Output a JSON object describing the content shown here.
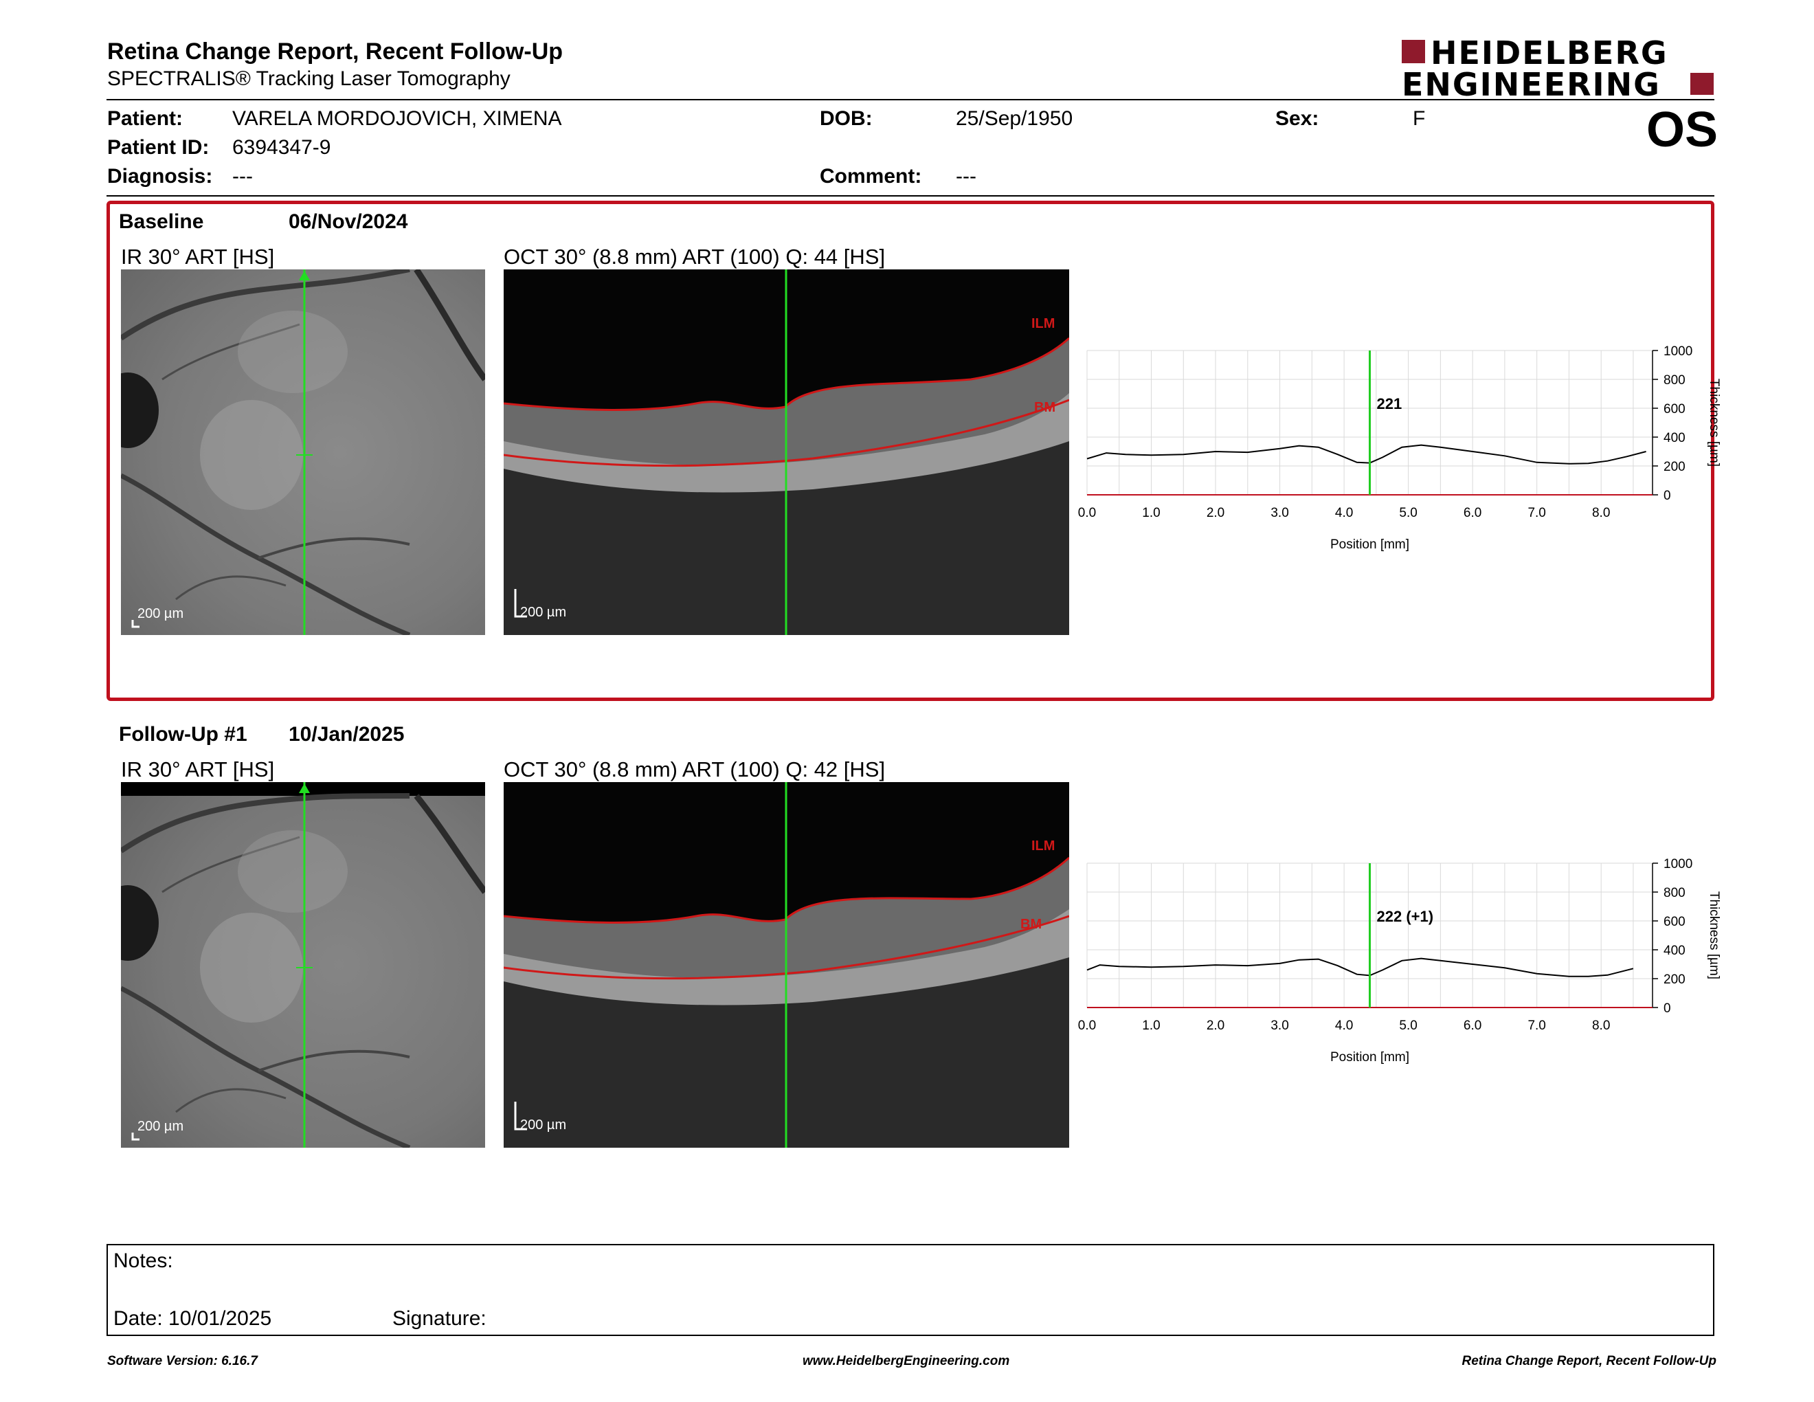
{
  "header": {
    "title": "Retina Change Report, Recent Follow-Up",
    "subtitle": "SPECTRALIS® Tracking Laser Tomography",
    "logo_line1": "HEIDELBERG",
    "logo_line2": "ENGINEERING",
    "eye": "OS",
    "brand_color": "#8f1a2c"
  },
  "patient": {
    "name_label": "Patient:",
    "name": "VARELA MORDOJOVICH, XIMENA",
    "id_label": "Patient ID:",
    "id": "6394347-9",
    "diagnosis_label": "Diagnosis:",
    "diagnosis": "---",
    "dob_label": "DOB:",
    "dob": "25/Sep/1950",
    "comment_label": "Comment:",
    "comment": "---",
    "sex_label": "Sex:",
    "sex": "F"
  },
  "baseline": {
    "label": "Baseline",
    "date": "06/Nov/2024",
    "ir_title": "IR 30° ART [HS]",
    "oct_title": "OCT 30° (8.8 mm) ART (100) Q: 44 [HS]",
    "ir_scale": "200 µm",
    "oct_scale": "200 µm",
    "ilm": "ILM",
    "bm": "BM"
  },
  "followup": {
    "label": "Follow-Up #1",
    "date": "10/Jan/2025",
    "ir_title": "IR 30° ART [HS]",
    "oct_title": "OCT 30° (8.8 mm) ART (100) Q: 42 [HS]",
    "ir_scale": "200 µm",
    "oct_scale": "200 µm",
    "ilm": "ILM",
    "bm": "BM"
  },
  "chart_data": [
    {
      "type": "line",
      "xlabel": "Position [mm]",
      "ylabel": "Thickness [µm]",
      "xlim": [
        0,
        8.8
      ],
      "ylim": [
        0,
        1000
      ],
      "xticks": [
        "0.0",
        "1.0",
        "2.0",
        "3.0",
        "4.0",
        "5.0",
        "6.0",
        "7.0",
        "8.0"
      ],
      "yticks": [
        "0",
        "200",
        "400",
        "600",
        "800",
        "1000"
      ],
      "cursor_x": 4.4,
      "cursor_label": "221",
      "cursor_color": "#22cc22",
      "series": [
        {
          "x": [
            0.0,
            0.3,
            0.6,
            1.0,
            1.5,
            2.0,
            2.5,
            3.0,
            3.3,
            3.6,
            3.9,
            4.2,
            4.4,
            4.6,
            4.9,
            5.2,
            5.5,
            6.0,
            6.5,
            7.0,
            7.5,
            7.8,
            8.1,
            8.4,
            8.7
          ],
          "y": [
            250,
            290,
            280,
            275,
            280,
            300,
            295,
            320,
            340,
            330,
            280,
            225,
            221,
            260,
            330,
            345,
            330,
            300,
            270,
            225,
            215,
            218,
            235,
            265,
            300
          ]
        }
      ]
    },
    {
      "type": "line",
      "xlabel": "Position [mm]",
      "ylabel": "Thickness [µm]",
      "xlim": [
        0,
        8.8
      ],
      "ylim": [
        0,
        1000
      ],
      "xticks": [
        "0.0",
        "1.0",
        "2.0",
        "3.0",
        "4.0",
        "5.0",
        "6.0",
        "7.0",
        "8.0"
      ],
      "yticks": [
        "0",
        "200",
        "400",
        "600",
        "800",
        "1000"
      ],
      "cursor_x": 4.4,
      "cursor_label": "222 (+1)",
      "cursor_color": "#22cc22",
      "series": [
        {
          "x": [
            0.0,
            0.2,
            0.5,
            1.0,
            1.5,
            2.0,
            2.5,
            3.0,
            3.3,
            3.6,
            3.9,
            4.2,
            4.4,
            4.6,
            4.9,
            5.2,
            5.5,
            6.0,
            6.5,
            7.0,
            7.5,
            7.8,
            8.1,
            8.5
          ],
          "y": [
            260,
            295,
            285,
            280,
            285,
            295,
            290,
            305,
            330,
            335,
            290,
            230,
            222,
            260,
            325,
            340,
            325,
            300,
            275,
            235,
            215,
            215,
            225,
            270
          ]
        }
      ]
    }
  ],
  "notes": {
    "notes_label": "Notes:",
    "date_label": "Date: 10/01/2025",
    "signature_label": "Signature:"
  },
  "footer": {
    "version": "Software Version: 6.16.7",
    "website": "www.HeidelbergEngineering.com",
    "report": "Retina Change Report, Recent Follow-Up"
  }
}
